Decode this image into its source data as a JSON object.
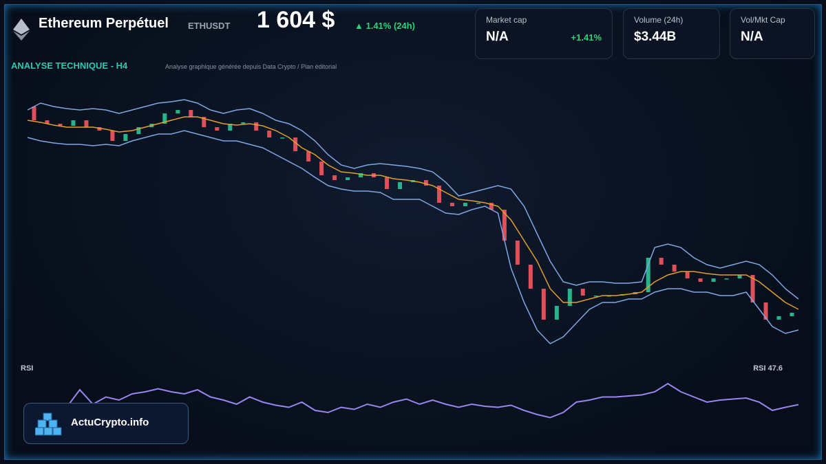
{
  "header": {
    "name": "Ethereum Perpétuel",
    "symbol": "ETHUSDT",
    "price": "1 604 $",
    "change": "▲ 1.41% (24h)",
    "section": "ANALYSE TECHNIQUE - H4",
    "note": "Analyse graphique générée depuis Data Crypto / Plan éditorial"
  },
  "cards": [
    {
      "label": "Market cap",
      "value": "N/A",
      "extra": "+1.41%"
    },
    {
      "label": "Volume (24h)",
      "value": "$3.44B"
    },
    {
      "label": "Vol/Mkt Cap",
      "value": "N/A"
    }
  ],
  "logo": "ActuCrypto.info",
  "chart_data": [
    {
      "type": "candlestick",
      "ylim": [
        1549,
        1929
      ],
      "series": [
        {
          "name": "close",
          "color": "#e8eef7",
          "values": [
            1904,
            1884,
            1879,
            1876,
            1884,
            1874,
            1869,
            1854,
            1864,
            1874,
            1879,
            1894,
            1899,
            1889,
            1874,
            1869,
            1879,
            1881,
            1869,
            1859,
            1859,
            1839,
            1824,
            1804,
            1797,
            1801,
            1807,
            1801,
            1784,
            1794,
            1797,
            1789,
            1764,
            1759,
            1764,
            1764,
            1754,
            1709,
            1674,
            1639,
            1594,
            1614,
            1639,
            1629,
            1629,
            1629,
            1631,
            1634,
            1684,
            1674,
            1664,
            1654,
            1649,
            1654,
            1654,
            1659,
            1619,
            1594,
            1599,
            1604
          ]
        },
        {
          "name": "upper",
          "color": "#7fa8e6",
          "values": [
            1899,
            1909,
            1904,
            1901,
            1899,
            1901,
            1899,
            1894,
            1899,
            1904,
            1909,
            1911,
            1914,
            1909,
            1899,
            1894,
            1899,
            1901,
            1894,
            1884,
            1879,
            1869,
            1854,
            1834,
            1819,
            1814,
            1819,
            1821,
            1819,
            1817,
            1814,
            1809,
            1794,
            1774,
            1779,
            1784,
            1789,
            1784,
            1759,
            1719,
            1679,
            1649,
            1644,
            1649,
            1649,
            1647,
            1647,
            1649,
            1699,
            1704,
            1699,
            1684,
            1674,
            1669,
            1674,
            1679,
            1674,
            1659,
            1639,
            1624
          ]
        },
        {
          "name": "lower",
          "color": "#7fa8e6",
          "values": [
            1859,
            1854,
            1851,
            1849,
            1849,
            1847,
            1849,
            1847,
            1854,
            1859,
            1864,
            1864,
            1869,
            1864,
            1859,
            1854,
            1854,
            1849,
            1844,
            1834,
            1824,
            1814,
            1801,
            1789,
            1784,
            1781,
            1781,
            1779,
            1769,
            1769,
            1769,
            1759,
            1749,
            1747,
            1754,
            1759,
            1749,
            1669,
            1619,
            1579,
            1559,
            1569,
            1589,
            1609,
            1619,
            1619,
            1624,
            1624,
            1634,
            1639,
            1639,
            1634,
            1634,
            1629,
            1629,
            1634,
            1609,
            1584,
            1574,
            1579
          ]
        },
        {
          "name": "ma",
          "color": "#e0a030",
          "values": [
            1884,
            1881,
            1877,
            1874,
            1874,
            1874,
            1871,
            1867,
            1869,
            1874,
            1879,
            1884,
            1889,
            1889,
            1884,
            1879,
            1877,
            1879,
            1876,
            1869,
            1859,
            1844,
            1834,
            1819,
            1809,
            1807,
            1804,
            1804,
            1799,
            1797,
            1794,
            1789,
            1779,
            1769,
            1767,
            1764,
            1759,
            1739,
            1709,
            1679,
            1639,
            1619,
            1619,
            1624,
            1629,
            1629,
            1631,
            1634,
            1649,
            1659,
            1664,
            1664,
            1661,
            1659,
            1659,
            1659,
            1649,
            1634,
            1619,
            1609
          ]
        }
      ]
    },
    {
      "type": "line",
      "title": "RSI",
      "label": "RSI 47.6",
      "ylim": [
        20,
        80
      ],
      "series": [
        {
          "name": "RSI",
          "color": "#9a86f0",
          "values": [
            null,
            null,
            null,
            45,
            62,
            48,
            55,
            52,
            58,
            60,
            63,
            60,
            58,
            62,
            55,
            52,
            48,
            55,
            50,
            47,
            45,
            50,
            42,
            40,
            45,
            43,
            48,
            45,
            50,
            53,
            48,
            52,
            48,
            45,
            48,
            46,
            45,
            47,
            42,
            38,
            35,
            40,
            50,
            52,
            55,
            55,
            56,
            57,
            60,
            68,
            60,
            55,
            50,
            52,
            53,
            54,
            50,
            42,
            45,
            47.6
          ]
        }
      ]
    }
  ]
}
